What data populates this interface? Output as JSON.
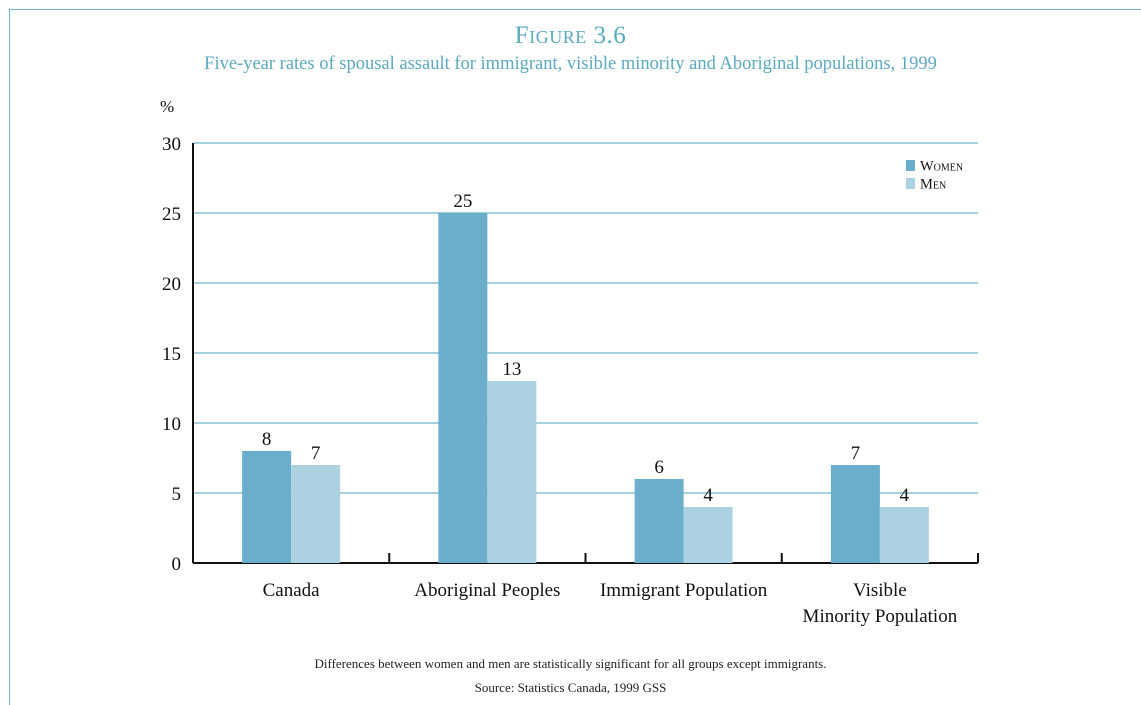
{
  "figure_label": "Figure 3.6",
  "chart_data": {
    "type": "bar",
    "title": "Five-year rates of spousal assault for immigrant, visible minority and Aboriginal populations, 1999",
    "ylabel": "%",
    "xlabel": "",
    "ylim": [
      0,
      30
    ],
    "yticks": [
      0,
      5,
      10,
      15,
      20,
      25,
      30
    ],
    "categories": [
      "Canada",
      "Aboriginal Peoples",
      "Immigrant Population",
      "Visible Minority Population"
    ],
    "category_lines": [
      [
        "Canada"
      ],
      [
        "Aboriginal Peoples"
      ],
      [
        "Immigrant Population"
      ],
      [
        "Visible",
        "Minority Population"
      ]
    ],
    "series": [
      {
        "name": "Women",
        "values": [
          8,
          25,
          6,
          7
        ],
        "color": "#6aaecb"
      },
      {
        "name": "Men",
        "values": [
          7,
          13,
          4,
          4
        ],
        "color": "#acd2e2"
      }
    ],
    "grid": true,
    "legend": "top-right"
  },
  "footnote": "Differences between women and men are statistically significant for all groups except immigrants.",
  "source": "Source: Statistics Canada, 1999 GSS"
}
